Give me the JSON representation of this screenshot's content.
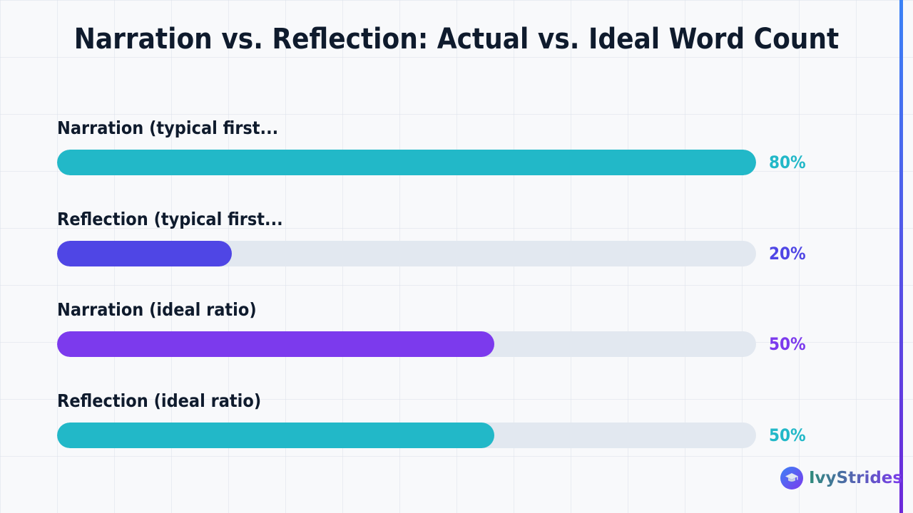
{
  "chart_data": {
    "type": "bar",
    "orientation": "horizontal",
    "title": "Narration vs. Reflection: Actual vs. Ideal Word Count",
    "categories": [
      "Narration (typical first...",
      "Reflection (typical first...",
      "Narration (ideal ratio)",
      "Reflection (ideal ratio)"
    ],
    "values": [
      80,
      20,
      50,
      50
    ],
    "value_labels": [
      "80%",
      "20%",
      "50%",
      "50%"
    ],
    "colors": [
      "#22b8c8",
      "#4f46e5",
      "#7c3aed",
      "#22b8c8"
    ],
    "xlim": [
      0,
      80
    ],
    "unit": "%",
    "track_color": "#e2e8f0",
    "grid": false,
    "legend": "none"
  },
  "brand": {
    "name": "IvyStrides",
    "icon": "graduation-cap-icon"
  },
  "colors": {
    "title": "#0f1b2d",
    "accent_gradient": [
      "#3b82f6",
      "#6d28d9"
    ]
  }
}
